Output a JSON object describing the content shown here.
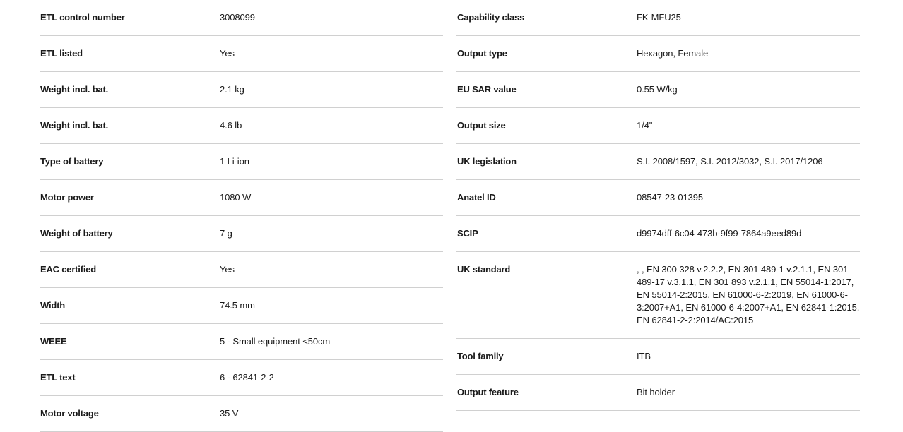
{
  "left": [
    {
      "label": "ETL control number",
      "value": "3008099"
    },
    {
      "label": "ETL listed",
      "value": "Yes"
    },
    {
      "label": "Weight incl. bat.",
      "value": "2.1 kg"
    },
    {
      "label": "Weight incl. bat.",
      "value": "4.6 lb"
    },
    {
      "label": "Type of battery",
      "value": "1 Li-ion"
    },
    {
      "label": "Motor power",
      "value": "1080 W"
    },
    {
      "label": "Weight of battery",
      "value": "7 g"
    },
    {
      "label": "EAC certified",
      "value": "Yes"
    },
    {
      "label": "Width",
      "value": "74.5 mm"
    },
    {
      "label": "WEEE",
      "value": "5 - Small equipment <50cm"
    },
    {
      "label": "ETL text",
      "value": "6 - 62841-2-2"
    },
    {
      "label": "Motor voltage",
      "value": "35 V"
    }
  ],
  "right": [
    {
      "label": "Capability class",
      "value": "FK-MFU25"
    },
    {
      "label": "Output type",
      "value": "Hexagon, Female"
    },
    {
      "label": "EU SAR value",
      "value": "0.55 W/kg"
    },
    {
      "label": "Output size",
      "value": "1/4\""
    },
    {
      "label": "UK legislation",
      "value": "S.I. 2008/1597, S.I. 2012/3032, S.I. 2017/1206"
    },
    {
      "label": "Anatel ID",
      "value": "08547-23-01395"
    },
    {
      "label": "SCIP",
      "value": "d9974dff-6c04-473b-9f99-7864a9eed89d"
    },
    {
      "label": "UK standard",
      "value": ", , EN 300 328 v.2.2.2, EN 301 489-1 v.2.1.1, EN 301 489-17 v.3.1.1, EN 301 893 v.2.1.1, EN 55014-1:2017, EN 55014-2:2015, EN 61000-6-2:2019, EN 61000-6-3:2007+A1, EN 61000-6-4:2007+A1, EN 62841-1:2015, EN 62841-2-2:2014/AC:2015"
    },
    {
      "label": "Tool family",
      "value": "ITB"
    },
    {
      "label": "Output feature",
      "value": "Bit holder"
    }
  ]
}
